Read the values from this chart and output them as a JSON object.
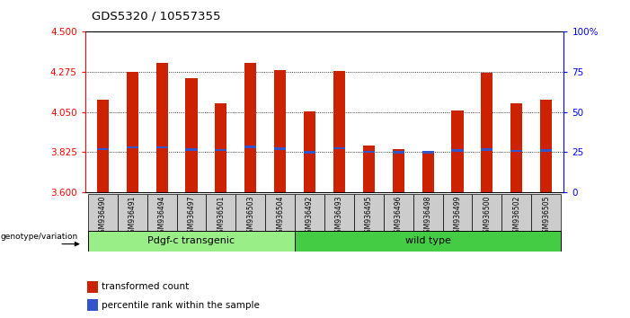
{
  "title": "GDS5320 / 10557355",
  "samples": [
    "GSM936490",
    "GSM936491",
    "GSM936494",
    "GSM936497",
    "GSM936501",
    "GSM936503",
    "GSM936504",
    "GSM936492",
    "GSM936493",
    "GSM936495",
    "GSM936496",
    "GSM936498",
    "GSM936499",
    "GSM936500",
    "GSM936502",
    "GSM936505"
  ],
  "bar_tops": [
    4.12,
    4.275,
    4.325,
    4.24,
    4.1,
    4.325,
    4.285,
    4.055,
    4.28,
    3.865,
    3.84,
    3.825,
    4.06,
    4.27,
    4.1,
    4.12
  ],
  "bar_bottom": 3.6,
  "blue_markers": [
    3.843,
    3.853,
    3.853,
    3.84,
    3.838,
    3.855,
    3.845,
    3.825,
    3.847,
    3.828,
    3.826,
    3.824,
    3.835,
    3.84,
    3.833,
    3.835
  ],
  "group1_label": "Pdgf-c transgenic",
  "group2_label": "wild type",
  "group1_count": 7,
  "group2_count": 9,
  "ylim": [
    3.6,
    4.5
  ],
  "yticks": [
    3.6,
    3.825,
    4.05,
    4.275,
    4.5
  ],
  "right_yticks": [
    0,
    25,
    50,
    75,
    100
  ],
  "bar_color": "#cc2200",
  "blue_color": "#3355cc",
  "group1_bg": "#99ee88",
  "group2_bg": "#44cc44",
  "xlabel_bg": "#cccccc",
  "legend_red_label": "transformed count",
  "legend_blue_label": "percentile rank within the sample",
  "bar_width": 0.4
}
